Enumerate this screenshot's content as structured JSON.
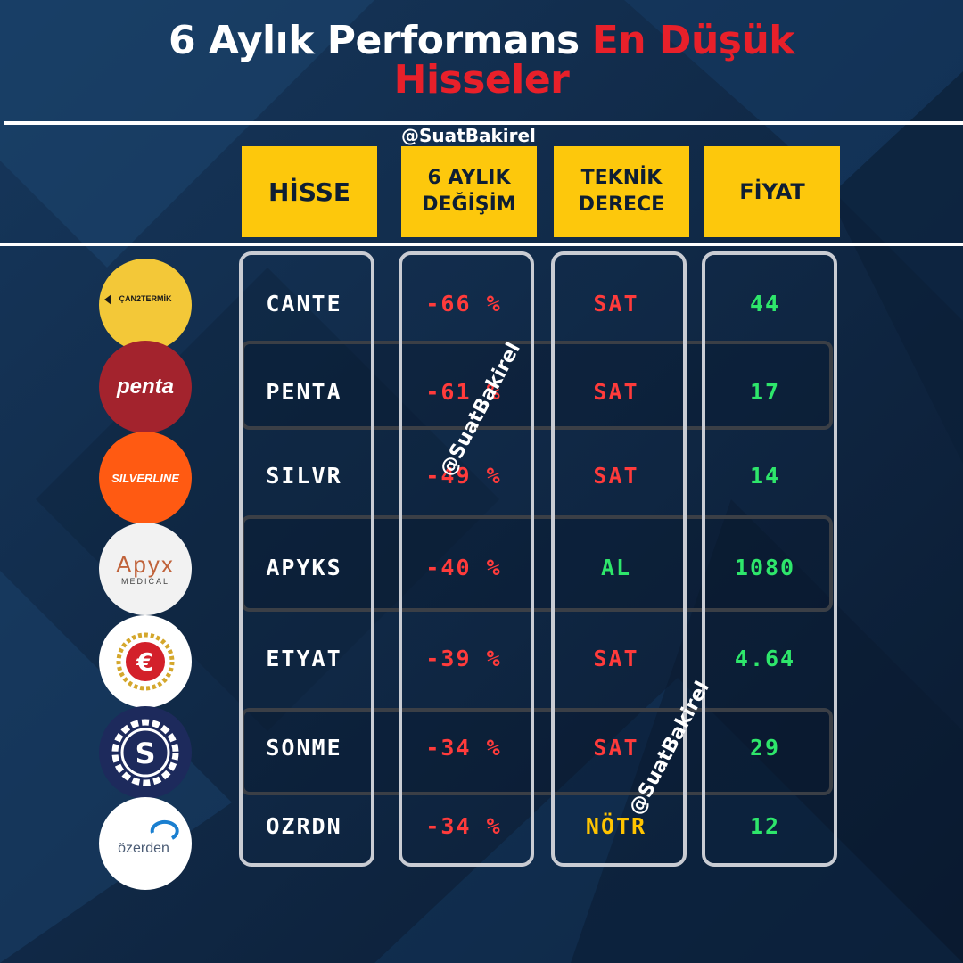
{
  "title": {
    "line1_white": "6 Aylık Performans",
    "line1_red": "En Düşük",
    "line2_red": "Hisseler"
  },
  "watermark": "@SuatBakirel",
  "headers": {
    "hisse": "HİSSE",
    "degisim": [
      "6 AYLIK",
      "DEĞİŞİM"
    ],
    "teknik": [
      "TEKNİK",
      "DERECE"
    ],
    "fiyat": "FİYAT"
  },
  "colors": {
    "negative": "#ff3b3b",
    "sell": "#ff3b3b",
    "buy": "#2ee66b",
    "neutral": "#ffc400",
    "price": "#2ee66b",
    "header_bg": "#fdc80c",
    "title_red": "#e8202a"
  },
  "rows": [
    {
      "ticker": "CANTE",
      "change": "-66 %",
      "rating": "SAT",
      "rating_type": "sell",
      "price": "44",
      "logo": {
        "text": "ÇAN2TERMİK",
        "bg": "#f3c838",
        "fg": "#1a1a1a"
      }
    },
    {
      "ticker": "PENTA",
      "change": "-61 %",
      "rating": "SAT",
      "rating_type": "sell",
      "price": "17",
      "logo": {
        "text": "penta",
        "bg": "#a3232d",
        "fg": "#ffffff"
      }
    },
    {
      "ticker": "SILVR",
      "change": "-49 %",
      "rating": "SAT",
      "rating_type": "sell",
      "price": "14",
      "logo": {
        "text": "SILVERLINE",
        "bg": "#ff5a12",
        "fg": "#ffffff"
      }
    },
    {
      "ticker": "APYKS",
      "change": "-40 %",
      "rating": "AL",
      "rating_type": "buy",
      "price": "1080",
      "logo": {
        "text": "Apyx",
        "subtext": "MEDICAL",
        "bg": "#f2f2f2",
        "fg": "#c0623a"
      }
    },
    {
      "ticker": "ETYAT",
      "change": "-39 %",
      "rating": "SAT",
      "rating_type": "sell",
      "price": "4.64",
      "logo": {
        "text": "€",
        "bg": "#ffffff",
        "fg": "#d3202a"
      }
    },
    {
      "ticker": "SONME",
      "change": "-34 %",
      "rating": "SAT",
      "rating_type": "sell",
      "price": "29",
      "logo": {
        "text": "S",
        "bg": "#1d2a5c",
        "fg": "#ffffff"
      }
    },
    {
      "ticker": "OZRDN",
      "change": "-34 %",
      "rating": "NÖTR",
      "rating_type": "neutral",
      "price": "12",
      "logo": {
        "text": "özerden",
        "bg": "#ffffff",
        "fg": "#4a5b74"
      }
    }
  ]
}
